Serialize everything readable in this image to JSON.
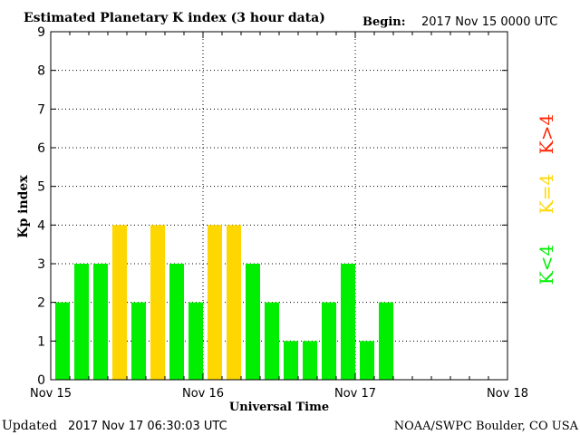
{
  "header": {
    "title": "Estimated Planetary K index (3 hour data)",
    "begin_label": "Begin:",
    "begin_value": "2017 Nov 15 0000 UTC"
  },
  "footer": {
    "updated_label": "Updated",
    "updated_value": "2017 Nov 17 06:30:03 UTC",
    "source": "NOAA/SWPC Boulder, CO USA"
  },
  "legend": {
    "items": [
      {
        "label": "K<4",
        "color": "#00ee00"
      },
      {
        "label": "K=4",
        "color": "#ffd700"
      },
      {
        "label": "K>4",
        "color": "#ff2200"
      }
    ]
  },
  "chart_data": {
    "type": "bar",
    "title": "Estimated Planetary K index (3 hour data)",
    "xlabel": "Universal Time",
    "ylabel": "Kp index",
    "ylim": [
      0,
      9
    ],
    "yticks": [
      0,
      1,
      2,
      3,
      4,
      5,
      6,
      7,
      8,
      9
    ],
    "xticks": [
      "Nov 15",
      "Nov 16",
      "Nov 17",
      "Nov 18"
    ],
    "bins_per_day": 8,
    "days": 3,
    "grid": true,
    "values": [
      2,
      3,
      3,
      4,
      2,
      4,
      3,
      2,
      4,
      4,
      3,
      2,
      1,
      1,
      2,
      3,
      1,
      2
    ],
    "colors": {
      "below_4": "#00ee00",
      "equal_4": "#ffd700",
      "above_4": "#ff2200"
    }
  }
}
